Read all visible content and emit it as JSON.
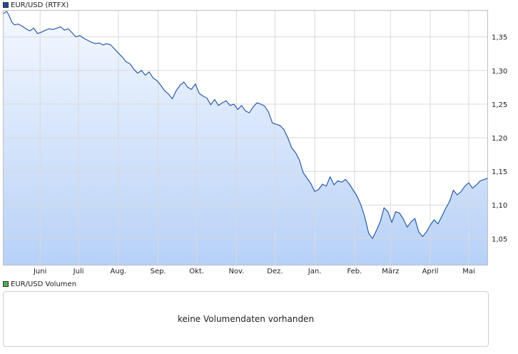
{
  "price_legend": {
    "label": "EUR/USD (RTFX)",
    "color": "#1f4f9c"
  },
  "volume_legend": {
    "label": "EUR/USD Volumen",
    "color": "#4caf50"
  },
  "volume_panel": {
    "message": "keine Volumendaten vorhanden"
  },
  "colors": {
    "line": "#2b5ca8",
    "fill_top": "#f4f8ff",
    "fill_bottom": "#b7d1f7",
    "grid": "#d9d9d9",
    "border": "#bfbfbf"
  },
  "chart_data": {
    "type": "area",
    "title": "",
    "xlabel": "",
    "ylabel": "",
    "ylim": [
      1.01,
      1.39
    ],
    "yticks": [
      "1,05",
      "1,10",
      "1,15",
      "1,20",
      "1,25",
      "1,30",
      "1,35"
    ],
    "ytick_values": [
      1.05,
      1.1,
      1.15,
      1.2,
      1.25,
      1.3,
      1.35
    ],
    "xticks": [
      "Juni",
      "Juli",
      "Aug.",
      "Sep.",
      "Okt.",
      "Nov.",
      "Dez.",
      "Jan.",
      "Feb.",
      "März",
      "April",
      "Mai"
    ],
    "xtick_day_positions": [
      8,
      38,
      69,
      100,
      130,
      161,
      191,
      222,
      253,
      281,
      312,
      342
    ],
    "x_day_range": [
      -21,
      357
    ],
    "grid": true,
    "legend_position": "top-left",
    "series": [
      {
        "name": "EUR/USD (RTFX)",
        "x": [
          -21,
          -18,
          -16,
          -14,
          -12,
          -9,
          -6,
          -3,
          0,
          3,
          6,
          9,
          12,
          15,
          18,
          21,
          24,
          27,
          30,
          33,
          36,
          39,
          42,
          45,
          48,
          51,
          54,
          57,
          60,
          63,
          66,
          69,
          72,
          75,
          78,
          81,
          84,
          87,
          90,
          93,
          96,
          99,
          102,
          105,
          108,
          111,
          114,
          117,
          120,
          123,
          126,
          129,
          132,
          135,
          138,
          141,
          144,
          147,
          150,
          153,
          156,
          159,
          162,
          165,
          168,
          171,
          174,
          177,
          180,
          183,
          186,
          189,
          192,
          195,
          198,
          201,
          204,
          207,
          210,
          213,
          216,
          219,
          222,
          225,
          228,
          231,
          234,
          237,
          240,
          243,
          246,
          249,
          252,
          255,
          258,
          261,
          264,
          267,
          270,
          273,
          276,
          279,
          282,
          285,
          288,
          291,
          294,
          297,
          300,
          303,
          306,
          309,
          312,
          315,
          318,
          321,
          324,
          327,
          330,
          333,
          336,
          339,
          342,
          345,
          348,
          351,
          354,
          357
        ],
        "y": [
          1.384,
          1.388,
          1.381,
          1.372,
          1.368,
          1.369,
          1.366,
          1.362,
          1.359,
          1.363,
          1.355,
          1.357,
          1.36,
          1.362,
          1.361,
          1.363,
          1.365,
          1.36,
          1.362,
          1.356,
          1.35,
          1.352,
          1.348,
          1.345,
          1.342,
          1.34,
          1.341,
          1.338,
          1.34,
          1.338,
          1.332,
          1.326,
          1.32,
          1.313,
          1.31,
          1.302,
          1.296,
          1.3,
          1.293,
          1.298,
          1.289,
          1.285,
          1.278,
          1.27,
          1.265,
          1.258,
          1.27,
          1.278,
          1.283,
          1.275,
          1.272,
          1.28,
          1.266,
          1.262,
          1.259,
          1.249,
          1.257,
          1.248,
          1.252,
          1.255,
          1.248,
          1.25,
          1.242,
          1.248,
          1.24,
          1.237,
          1.246,
          1.252,
          1.25,
          1.247,
          1.238,
          1.222,
          1.22,
          1.218,
          1.212,
          1.2,
          1.185,
          1.178,
          1.167,
          1.148,
          1.14,
          1.132,
          1.12,
          1.123,
          1.131,
          1.128,
          1.142,
          1.13,
          1.136,
          1.134,
          1.138,
          1.131,
          1.122,
          1.113,
          1.1,
          1.082,
          1.058,
          1.05,
          1.062,
          1.075,
          1.096,
          1.09,
          1.074,
          1.09,
          1.088,
          1.079,
          1.067,
          1.075,
          1.08,
          1.06,
          1.053,
          1.06,
          1.07,
          1.078,
          1.072,
          1.083,
          1.095,
          1.105,
          1.122,
          1.115,
          1.12,
          1.128,
          1.133,
          1.125,
          1.13,
          1.136,
          1.138,
          1.14
        ]
      }
    ]
  }
}
